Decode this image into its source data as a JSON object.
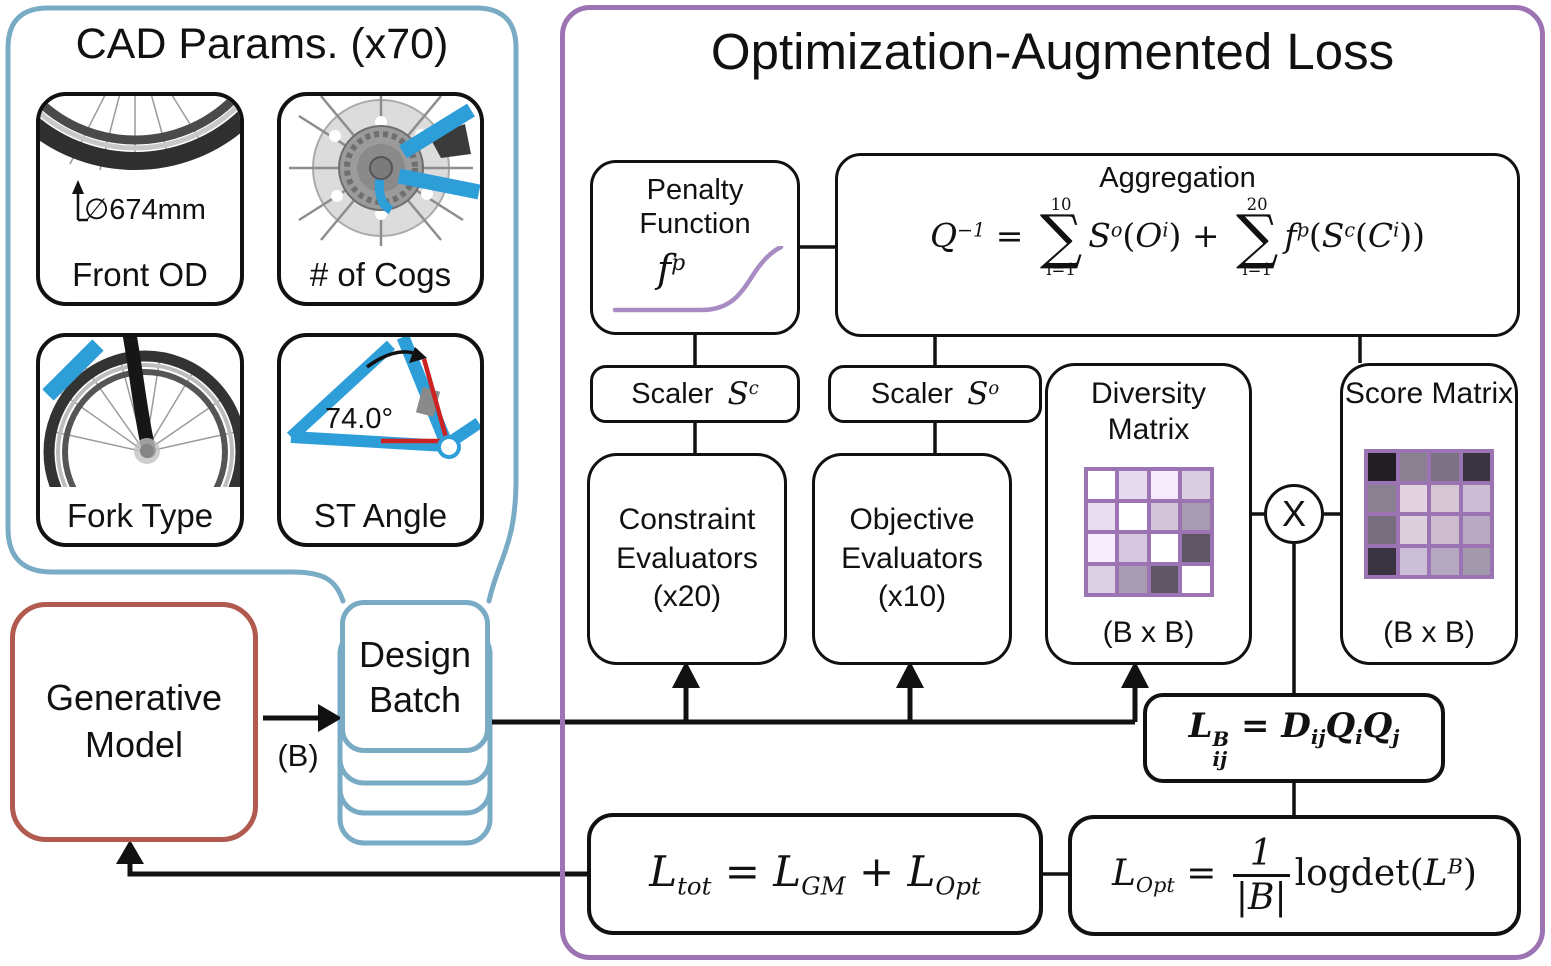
{
  "colors": {
    "panel_blue": "#79ABC5",
    "panel_red": "#B05A50",
    "panel_purple": "#9C74B4",
    "matrix_border": "#9C74B4",
    "penalty_curve": "#A98BC4",
    "bike_blue": "#2E9ED9",
    "angle_red": "#CC2222",
    "line_black": "#111111"
  },
  "cad_panel": {
    "title": "CAD Params. (x70)",
    "params": [
      {
        "label": "Front OD",
        "annotation": "∅674mm"
      },
      {
        "label": "# of Cogs",
        "annotation": ""
      },
      {
        "label": "Fork Type",
        "annotation": ""
      },
      {
        "label": "ST Angle",
        "annotation": "74.0°"
      }
    ]
  },
  "generative_model": {
    "label": "Generative Model"
  },
  "design_batch": {
    "label": "Design Batch",
    "batch_size_label": "(B)"
  },
  "loss_panel": {
    "title": "Optimization-Augmented Loss",
    "penalty": {
      "title": "Penalty Function",
      "symbol": [
        {
          "v": "f"
        },
        {
          "p": "p"
        }
      ]
    },
    "aggregation": {
      "title": "Aggregation",
      "formula": [
        {
          "v": "Q"
        },
        {
          "p": "−1"
        },
        {
          "t": " = "
        },
        {
          "s": {
            "t": "10",
            "b": "i=1"
          }
        },
        {
          "v": "S"
        },
        {
          "p": "o"
        },
        {
          "t": "("
        },
        {
          "v": "O"
        },
        {
          "p": "i"
        },
        {
          "t": ") + "
        },
        {
          "s": {
            "t": "20",
            "b": "i=1"
          }
        },
        {
          "v": "f"
        },
        {
          "p": "p"
        },
        {
          "t": "("
        },
        {
          "v": "S"
        },
        {
          "p": "c"
        },
        {
          "t": "("
        },
        {
          "v": "C"
        },
        {
          "p": "i"
        },
        {
          "t": "))"
        }
      ]
    },
    "scaler_constraint": {
      "label": "Scaler",
      "symbol": [
        {
          "v": "S"
        },
        {
          "p": "c"
        }
      ]
    },
    "scaler_objective": {
      "label": "Scaler",
      "symbol": [
        {
          "v": "S"
        },
        {
          "p": "o"
        }
      ]
    },
    "constraint_evaluators": {
      "label": "Constraint Evaluators (x20)"
    },
    "objective_evaluators": {
      "label": "Objective Evaluators (x10)"
    },
    "diversity_matrix": {
      "title": "Diversity Matrix",
      "size_label": "(B x B)",
      "cells": [
        [
          "#ffffff",
          "#e6dbee",
          "#f6ebfb",
          "#d9cde2"
        ],
        [
          "#e8def0",
          "#ffffff",
          "#d2c5da",
          "#a89cb2"
        ],
        [
          "#f8edfc",
          "#d5c8de",
          "#ffffff",
          "#5f5664"
        ],
        [
          "#dcd0e4",
          "#a89cb2",
          "#5f5664",
          "#ffffff"
        ]
      ]
    },
    "score_matrix": {
      "title": "Score Matrix",
      "size_label": "(B x B)",
      "cells": [
        [
          "#221e24",
          "#8a8190",
          "#7b7384",
          "#393440"
        ],
        [
          "#8a8190",
          "#e3d3e0",
          "#d6c6d4",
          "#cbbdd4"
        ],
        [
          "#766e7c",
          "#decfdc",
          "#cdbccc",
          "#b7aac0"
        ],
        [
          "#393440",
          "#cbbfd6",
          "#b4a7c0",
          "#a399ad"
        ]
      ]
    },
    "multiply_label": "X",
    "likelihood_formula": [
      {
        "v": "L"
      },
      {
        "ps": [
          "B",
          "ij"
        ]
      },
      {
        "t": " = "
      },
      {
        "v": "D"
      },
      {
        "b": "ij"
      },
      {
        "v": "Q"
      },
      {
        "b": "i"
      },
      {
        "v": "Q"
      },
      {
        "b": "j"
      }
    ],
    "total_loss_formula": [
      {
        "v": "L"
      },
      {
        "b": "tot"
      },
      {
        "t": " = "
      },
      {
        "v": "L"
      },
      {
        "b": "GM"
      },
      {
        "t": " + "
      },
      {
        "v": "L"
      },
      {
        "b": "Opt"
      }
    ],
    "opt_loss_formula": [
      {
        "v": "L"
      },
      {
        "b": "Opt"
      },
      {
        "t": " = "
      },
      {
        "f": {
          "n": "1",
          "d": "|B|"
        }
      },
      {
        "t": "logdet("
      },
      {
        "v": "L"
      },
      {
        "p": "B"
      },
      {
        "t": ")"
      }
    ]
  }
}
